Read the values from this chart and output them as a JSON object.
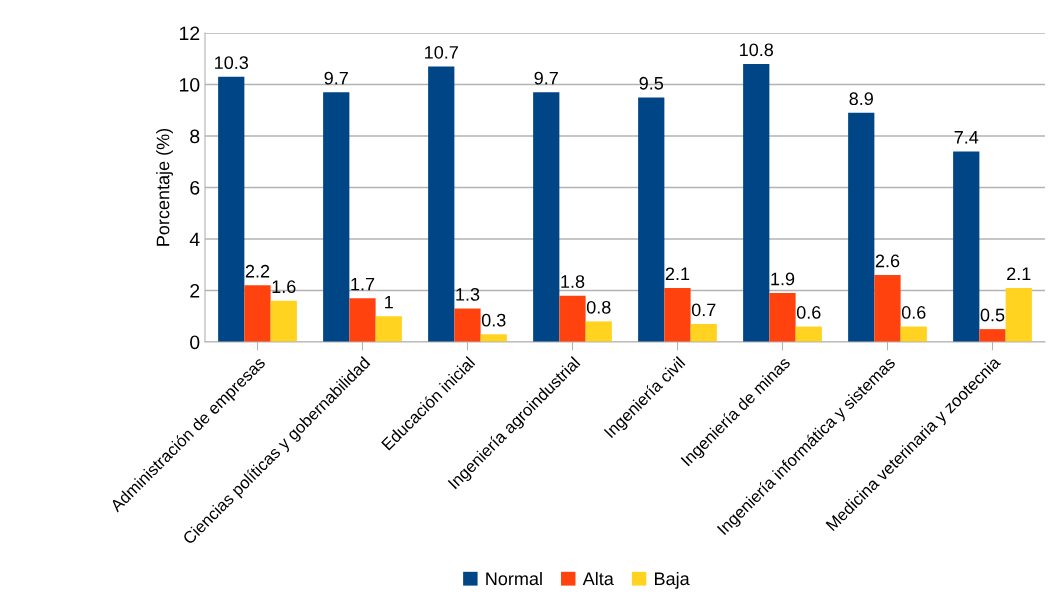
{
  "chart_data": {
    "type": "bar",
    "ylabel": "Porcentaje (%)",
    "categories": [
      "Administración de empresas",
      "Ciencias políticas y gobernabilidad",
      "Educación inicial",
      "Ingeniería agroindustrial",
      "Ingeniería civil",
      "Ingeniería de minas",
      "Ingeniería informática y sistemas",
      "Medicina veterinaria y zootecnia"
    ],
    "series": [
      {
        "name": "Normal",
        "color": "#004586",
        "values": [
          10.3,
          9.7,
          10.7,
          9.7,
          9.5,
          10.8,
          8.9,
          7.4
        ]
      },
      {
        "name": "Alta",
        "color": "#ff420e",
        "values": [
          2.2,
          1.7,
          1.3,
          1.8,
          2.1,
          1.9,
          2.6,
          0.5
        ]
      },
      {
        "name": "Baja",
        "color": "#ffd320",
        "values": [
          1.6,
          1,
          0.3,
          0.8,
          0.7,
          0.6,
          0.6,
          2.1
        ]
      }
    ],
    "ylim": [
      0,
      12
    ],
    "yticks": [
      0,
      2,
      4,
      6,
      8,
      10,
      12
    ],
    "grid": "y",
    "legend": "bottom",
    "data_labels": true
  }
}
